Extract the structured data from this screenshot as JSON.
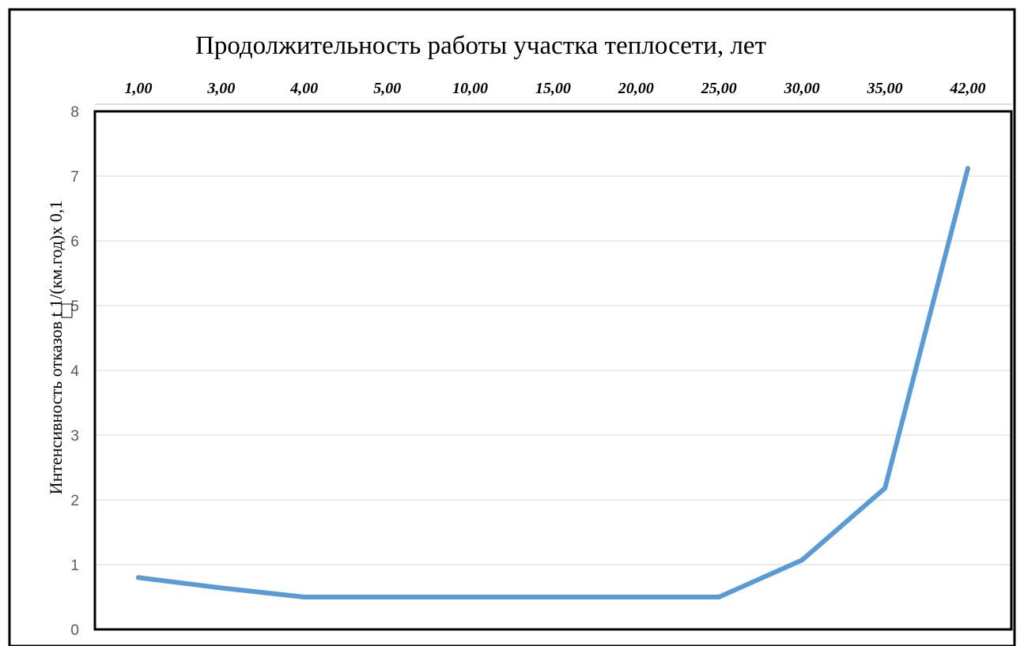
{
  "chart_data": {
    "type": "line",
    "title": "Продолжительность работы участка теплосети, лет",
    "xlabel": "",
    "ylabel": "Интенсивность отказов   t 1/(км.год)х 0,1",
    "categories": [
      "1,00",
      "3,00",
      "4,00",
      "5,00",
      "10,00",
      "15,00",
      "20,00",
      "25,00",
      "30,00",
      "35,00",
      "42,00"
    ],
    "series": [
      {
        "values": [
          0.8,
          0.64,
          0.5,
          0.5,
          0.5,
          0.5,
          0.5,
          0.5,
          1.07,
          2.18,
          7.12
        ],
        "color": "#5b9bd5"
      }
    ],
    "ylim": [
      0,
      8
    ],
    "yticks": [
      "0",
      "1",
      "2",
      "3",
      "4",
      "5",
      "6",
      "7",
      "8"
    ],
    "grid": true,
    "x_axis_position": "top",
    "legend": "none"
  }
}
